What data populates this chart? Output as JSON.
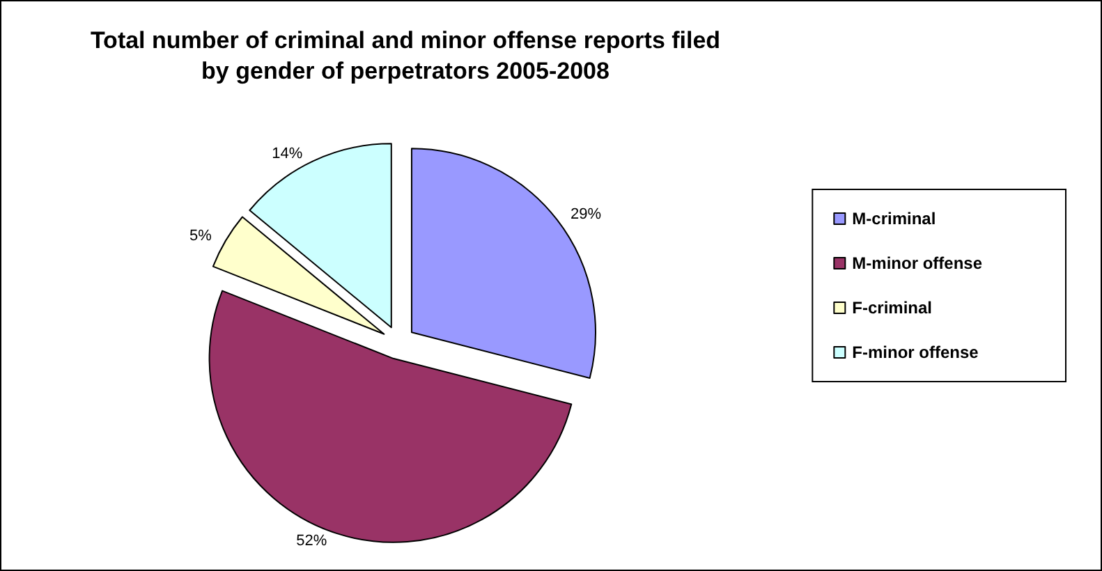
{
  "chart_data": {
    "type": "pie",
    "title": "Total number of criminal and minor offense reports filed\nby gender of perpetrators 2005-2008",
    "categories": [
      "M-criminal",
      "M-minor offense",
      "F-criminal",
      "F-minor offense"
    ],
    "values": [
      29,
      52,
      5,
      14
    ],
    "colors": [
      "#9999ff",
      "#993366",
      "#ffffcc",
      "#ccffff"
    ],
    "value_labels": [
      "29%",
      "52%",
      "5%",
      "14%"
    ],
    "legend": "right"
  }
}
